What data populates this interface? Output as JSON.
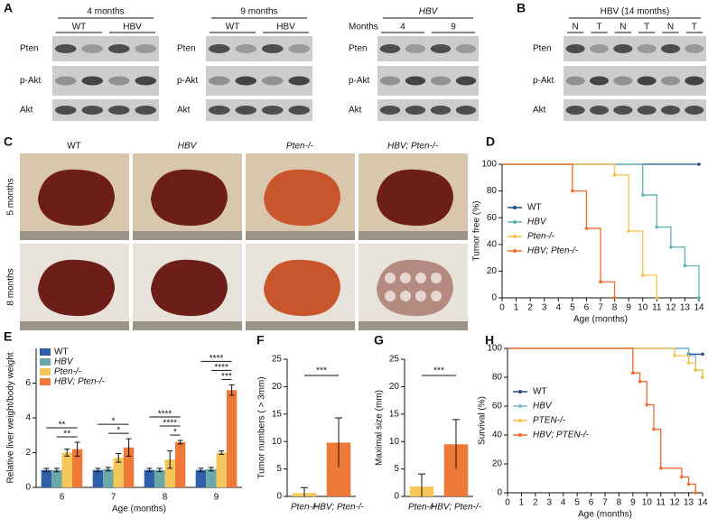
{
  "panel_labels": [
    "A",
    "B",
    "C",
    "D",
    "E",
    "F",
    "G",
    "H"
  ],
  "blots": [
    {
      "header": "4 months",
      "groups": [
        "WT",
        "HBV"
      ],
      "rows": [
        "Pten",
        "p-Akt",
        "Akt"
      ]
    },
    {
      "header": "9 months",
      "groups": [
        "WT",
        "HBV"
      ],
      "rows": [
        "Pten",
        "p-Akt",
        "Akt"
      ]
    },
    {
      "header": "HBV",
      "prefix": "Months",
      "groups": [
        "4",
        "9"
      ],
      "rows": [
        "Pten",
        "p-Akt",
        "Akt"
      ]
    },
    {
      "header": "HBV (14 months)",
      "groups": [
        "N",
        "T",
        "N",
        "T",
        "N",
        "T"
      ],
      "rows": [
        "Pten",
        "p-Akt",
        "Akt"
      ]
    }
  ],
  "photos": {
    "columns": [
      "WT",
      "HBV",
      "Pten-/-",
      "HBV; Pten-/-"
    ],
    "rows": [
      "5 months",
      "8 months"
    ]
  },
  "chart_data": [
    {
      "type": "step",
      "xlabel": "Age (months)",
      "ylabel": "Tumor free (%)",
      "xlim": [
        0,
        14
      ],
      "xticks": [
        0,
        1,
        2,
        3,
        4,
        5,
        6,
        7,
        8,
        9,
        10,
        11,
        12,
        13,
        14
      ],
      "ylim": [
        0,
        100
      ],
      "yticks": [
        0,
        20,
        40,
        60,
        80,
        100
      ],
      "legend": "center left",
      "series": [
        {
          "name": "WT",
          "color": "#1f4e8c",
          "x": [
            0,
            14
          ],
          "values": [
            100,
            100
          ]
        },
        {
          "name": "HBV",
          "color": "#5fb3b8",
          "x": [
            0,
            10,
            11,
            12,
            13,
            14
          ],
          "values": [
            100,
            77,
            53,
            38,
            24,
            0
          ]
        },
        {
          "name": "Pten-/-",
          "color": "#f6c244",
          "x": [
            0,
            8,
            9,
            10,
            11
          ],
          "values": [
            100,
            92,
            50,
            17,
            0
          ]
        },
        {
          "name": "HBV; Pten-/-",
          "color": "#f06a2c",
          "x": [
            0,
            5,
            6,
            7,
            8
          ],
          "values": [
            100,
            80,
            52,
            12,
            0
          ]
        }
      ]
    },
    {
      "type": "grouped-bar",
      "xlabel": "Age (months)",
      "ylabel": "Relative liver weight/body weight",
      "categories": [
        "6",
        "7",
        "8",
        "9"
      ],
      "ylim": [
        0,
        8
      ],
      "yticks": [
        0,
        2,
        4,
        6
      ],
      "legend": "upper left",
      "series": [
        {
          "name": "WT",
          "color": "#2e5fa8",
          "values": [
            1.0,
            1.0,
            1.0,
            1.0
          ],
          "errors": [
            0.1,
            0.1,
            0.1,
            0.1
          ]
        },
        {
          "name": "HBV",
          "color": "#6aa7a8",
          "values": [
            1.0,
            1.05,
            1.0,
            1.05
          ],
          "errors": [
            0.1,
            0.1,
            0.1,
            0.1
          ]
        },
        {
          "name": "Pten-/-",
          "color": "#f5c65a",
          "values": [
            2.0,
            1.7,
            1.6,
            2.0
          ],
          "errors": [
            0.2,
            0.25,
            0.5,
            0.1
          ]
        },
        {
          "name": "HBV; Pten-/-",
          "color": "#ee7a3a",
          "values": [
            2.2,
            2.3,
            2.6,
            5.6
          ],
          "errors": [
            0.4,
            0.5,
            0.1,
            0.3
          ]
        }
      ],
      "annotations": [
        {
          "label": "**",
          "category": 0,
          "from": 0,
          "to": 3
        },
        {
          "label": "**",
          "category": 0,
          "from": 1,
          "to": 3
        },
        {
          "label": "*",
          "category": 1,
          "from": 0,
          "to": 3
        },
        {
          "label": "*",
          "category": 1,
          "from": 1,
          "to": 3
        },
        {
          "label": "****",
          "category": 2,
          "from": 0,
          "to": 3
        },
        {
          "label": "****",
          "category": 2,
          "from": 1,
          "to": 3
        },
        {
          "label": "*",
          "category": 2,
          "from": 2,
          "to": 3
        },
        {
          "label": "****",
          "category": 3,
          "from": 0,
          "to": 3
        },
        {
          "label": "****",
          "category": 3,
          "from": 1,
          "to": 3
        },
        {
          "label": "***",
          "category": 3,
          "from": 2,
          "to": 3
        }
      ]
    },
    {
      "type": "bar",
      "ylabel": "Tumor numbers ( > 3mm)",
      "categories": [
        "Pten-/-",
        "HBV; Pten-/-"
      ],
      "values": [
        0.6,
        9.8
      ],
      "errors": [
        1.0,
        4.5
      ],
      "colors": [
        "#f5c65a",
        "#ee7a3a"
      ],
      "ylim": [
        0,
        25
      ],
      "yticks": [
        0,
        5,
        10,
        15,
        20,
        25
      ],
      "annotation": "***"
    },
    {
      "type": "bar",
      "ylabel": "Maximal size (mm)",
      "categories": [
        "Pten-/-",
        "HBV; Pten-/-"
      ],
      "values": [
        1.8,
        9.5
      ],
      "errors": [
        2.3,
        4.5
      ],
      "colors": [
        "#f5c65a",
        "#ee7a3a"
      ],
      "ylim": [
        0,
        25
      ],
      "yticks": [
        0,
        5,
        10,
        15,
        20,
        25
      ],
      "annotation": "***"
    },
    {
      "type": "step",
      "xlabel": "Age (months)",
      "ylabel": "Survival (%)",
      "xlim": [
        0,
        14
      ],
      "xticks": [
        0,
        1,
        2,
        3,
        4,
        5,
        6,
        7,
        8,
        9,
        10,
        11,
        12,
        13,
        14
      ],
      "ylim": [
        0,
        100
      ],
      "yticks": [
        0,
        20,
        40,
        60,
        80,
        100
      ],
      "legend": "center left",
      "series": [
        {
          "name": "WT",
          "color": "#1f4e8c",
          "x": [
            0,
            13,
            14
          ],
          "values": [
            100,
            96,
            96
          ]
        },
        {
          "name": "HBV",
          "color": "#7ab8e0",
          "x": [
            0,
            13,
            13.5,
            14
          ],
          "values": [
            100,
            95,
            85,
            80
          ]
        },
        {
          "name": "PTEN-/-",
          "color": "#f6c244",
          "x": [
            0,
            12,
            13,
            13.5,
            14
          ],
          "values": [
            100,
            95,
            90,
            85,
            80
          ]
        },
        {
          "name": "HBV; PTEN-/-",
          "color": "#f06a2c",
          "x": [
            0,
            9,
            9.5,
            10,
            10.5,
            11,
            12.5,
            13,
            13.5
          ],
          "values": [
            100,
            83,
            77,
            61,
            44,
            17,
            11,
            6,
            0
          ]
        }
      ]
    }
  ]
}
